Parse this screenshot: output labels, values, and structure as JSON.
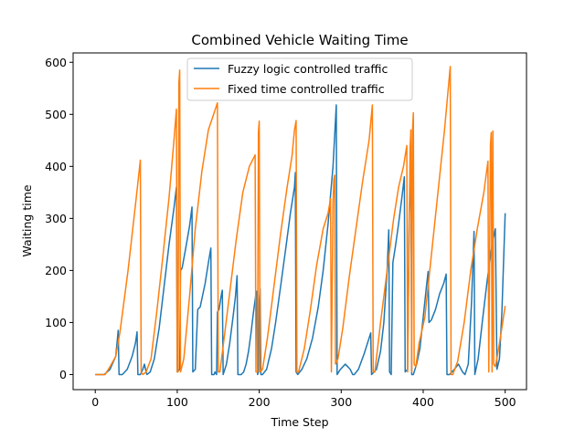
{
  "chart_data": {
    "type": "line",
    "title": "Combined Vehicle Waiting Time",
    "xlabel": "Time Step",
    "ylabel": "Waiting time",
    "xlim": [
      -27,
      526
    ],
    "ylim": [
      -29,
      618
    ],
    "xticks": [
      0,
      100,
      200,
      300,
      400,
      500
    ],
    "yticks": [
      0,
      100,
      200,
      300,
      400,
      500,
      600
    ],
    "grid": false,
    "legend_position": "top-center",
    "series": [
      {
        "name": "Fuzzy logic controlled traffic",
        "color": "#1f77b4",
        "points": [
          [
            0,
            0
          ],
          [
            11,
            0
          ],
          [
            18,
            10
          ],
          [
            25,
            35
          ],
          [
            28,
            85
          ],
          [
            29,
            0
          ],
          [
            33,
            0
          ],
          [
            39,
            10
          ],
          [
            45,
            35
          ],
          [
            49,
            60
          ],
          [
            51,
            82
          ],
          [
            52,
            0
          ],
          [
            55,
            0
          ],
          [
            58,
            10
          ],
          [
            60,
            20
          ],
          [
            62,
            5
          ],
          [
            63,
            0
          ],
          [
            67,
            5
          ],
          [
            72,
            30
          ],
          [
            78,
            90
          ],
          [
            84,
            170
          ],
          [
            90,
            250
          ],
          [
            96,
            320
          ],
          [
            99,
            360
          ],
          [
            100,
            5
          ],
          [
            103,
            10
          ],
          [
            104,
            200
          ],
          [
            106,
            205
          ],
          [
            110,
            240
          ],
          [
            115,
            285
          ],
          [
            118,
            322
          ],
          [
            119,
            5
          ],
          [
            122,
            10
          ],
          [
            125,
            125
          ],
          [
            128,
            130
          ],
          [
            134,
            175
          ],
          [
            138,
            215
          ],
          [
            141,
            243
          ],
          [
            142,
            0
          ],
          [
            144,
            0
          ],
          [
            145,
            0
          ],
          [
            146,
            5
          ],
          [
            148,
            0
          ],
          [
            149,
            120
          ],
          [
            151,
            125
          ],
          [
            154,
            155
          ],
          [
            155,
            162
          ],
          [
            156,
            0
          ],
          [
            160,
            20
          ],
          [
            164,
            60
          ],
          [
            168,
            110
          ],
          [
            171,
            150
          ],
          [
            173,
            190
          ],
          [
            174,
            0
          ],
          [
            178,
            0
          ],
          [
            181,
            5
          ],
          [
            184,
            20
          ],
          [
            187,
            45
          ],
          [
            190,
            80
          ],
          [
            193,
            120
          ],
          [
            196,
            155
          ],
          [
            197,
            160
          ],
          [
            198,
            0
          ],
          [
            199,
            5
          ],
          [
            200,
            140
          ],
          [
            201,
            165
          ],
          [
            202,
            0
          ],
          [
            204,
            0
          ],
          [
            209,
            10
          ],
          [
            215,
            50
          ],
          [
            220,
            100
          ],
          [
            227,
            180
          ],
          [
            233,
            250
          ],
          [
            238,
            310
          ],
          [
            243,
            360
          ],
          [
            244,
            388
          ],
          [
            245,
            5
          ],
          [
            247,
            0
          ],
          [
            252,
            10
          ],
          [
            258,
            30
          ],
          [
            265,
            70
          ],
          [
            272,
            130
          ],
          [
            278,
            200
          ],
          [
            284,
            290
          ],
          [
            290,
            400
          ],
          [
            294,
            518
          ],
          [
            295,
            0
          ],
          [
            299,
            10
          ],
          [
            305,
            20
          ],
          [
            311,
            10
          ],
          [
            314,
            0
          ],
          [
            316,
            0
          ],
          [
            321,
            10
          ],
          [
            328,
            40
          ],
          [
            334,
            70
          ],
          [
            336,
            80
          ],
          [
            337,
            0
          ],
          [
            343,
            10
          ],
          [
            348,
            45
          ],
          [
            352,
            100
          ],
          [
            356,
            200
          ],
          [
            358,
            278
          ],
          [
            359,
            5
          ],
          [
            361,
            0
          ],
          [
            363,
            215
          ],
          [
            366,
            245
          ],
          [
            370,
            290
          ],
          [
            374,
            340
          ],
          [
            377,
            380
          ],
          [
            378,
            5
          ],
          [
            381,
            10
          ],
          [
            383,
            310
          ],
          [
            385,
            385
          ],
          [
            386,
            0
          ],
          [
            388,
            0
          ],
          [
            392,
            20
          ],
          [
            396,
            50
          ],
          [
            400,
            110
          ],
          [
            404,
            170
          ],
          [
            406,
            198
          ],
          [
            407,
            100
          ],
          [
            410,
            105
          ],
          [
            415,
            125
          ],
          [
            420,
            155
          ],
          [
            425,
            175
          ],
          [
            428,
            193
          ],
          [
            429,
            0
          ],
          [
            432,
            0
          ],
          [
            438,
            10
          ],
          [
            443,
            20
          ],
          [
            448,
            5
          ],
          [
            451,
            0
          ],
          [
            455,
            20
          ],
          [
            459,
            140
          ],
          [
            462,
            275
          ],
          [
            463,
            0
          ],
          [
            467,
            30
          ],
          [
            472,
            100
          ],
          [
            478,
            180
          ],
          [
            484,
            250
          ],
          [
            488,
            280
          ],
          [
            490,
            10
          ],
          [
            493,
            30
          ],
          [
            496,
            120
          ],
          [
            500,
            310
          ]
        ]
      },
      {
        "name": "Fixed time controlled traffic",
        "color": "#ff7f0e",
        "points": [
          [
            0,
            0
          ],
          [
            12,
            0
          ],
          [
            18,
            15
          ],
          [
            25,
            35
          ],
          [
            30,
            80
          ],
          [
            35,
            140
          ],
          [
            40,
            200
          ],
          [
            45,
            270
          ],
          [
            50,
            340
          ],
          [
            55,
            412
          ],
          [
            56,
            5
          ],
          [
            58,
            0
          ],
          [
            62,
            5
          ],
          [
            68,
            30
          ],
          [
            75,
            120
          ],
          [
            82,
            220
          ],
          [
            90,
            340
          ],
          [
            96,
            450
          ],
          [
            99,
            510
          ],
          [
            100,
            5
          ],
          [
            101,
            5
          ],
          [
            102,
            560
          ],
          [
            103,
            585
          ],
          [
            104,
            5
          ],
          [
            108,
            30
          ],
          [
            115,
            150
          ],
          [
            122,
            280
          ],
          [
            130,
            390
          ],
          [
            138,
            470
          ],
          [
            149,
            522
          ],
          [
            150,
            5
          ],
          [
            152,
            5
          ],
          [
            158,
            80
          ],
          [
            165,
            170
          ],
          [
            172,
            260
          ],
          [
            180,
            350
          ],
          [
            188,
            400
          ],
          [
            195,
            422
          ],
          [
            196,
            5
          ],
          [
            198,
            5
          ],
          [
            199,
            465
          ],
          [
            200,
            487
          ],
          [
            201,
            5
          ],
          [
            204,
            10
          ],
          [
            210,
            70
          ],
          [
            218,
            170
          ],
          [
            226,
            270
          ],
          [
            234,
            360
          ],
          [
            240,
            420
          ],
          [
            243,
            470
          ],
          [
            245,
            488
          ],
          [
            246,
            5
          ],
          [
            248,
            5
          ],
          [
            255,
            50
          ],
          [
            262,
            120
          ],
          [
            270,
            210
          ],
          [
            278,
            280
          ],
          [
            284,
            310
          ],
          [
            287,
            338
          ],
          [
            288,
            5
          ],
          [
            290,
            330
          ],
          [
            291,
            375
          ],
          [
            292,
            383
          ],
          [
            293,
            20
          ],
          [
            296,
            30
          ],
          [
            302,
            90
          ],
          [
            310,
            190
          ],
          [
            318,
            280
          ],
          [
            326,
            370
          ],
          [
            334,
            450
          ],
          [
            338,
            518
          ],
          [
            339,
            5
          ],
          [
            341,
            5
          ],
          [
            348,
            100
          ],
          [
            356,
            200
          ],
          [
            364,
            300
          ],
          [
            370,
            360
          ],
          [
            376,
            400
          ],
          [
            380,
            440
          ],
          [
            381,
            5
          ],
          [
            384,
            435
          ],
          [
            385,
            470
          ],
          [
            386,
            5
          ],
          [
            387,
            470
          ],
          [
            388,
            503
          ],
          [
            389,
            20
          ],
          [
            391,
            15
          ],
          [
            395,
            60
          ],
          [
            402,
            110
          ],
          [
            410,
            230
          ],
          [
            418,
            350
          ],
          [
            426,
            470
          ],
          [
            433,
            592
          ],
          [
            434,
            0
          ],
          [
            436,
            0
          ],
          [
            442,
            25
          ],
          [
            450,
            100
          ],
          [
            458,
            200
          ],
          [
            466,
            280
          ],
          [
            474,
            350
          ],
          [
            479,
            410
          ],
          [
            480,
            5
          ],
          [
            482,
            440
          ],
          [
            483,
            465
          ],
          [
            484,
            5
          ],
          [
            485,
            468
          ],
          [
            486,
            20
          ],
          [
            488,
            15
          ],
          [
            492,
            50
          ],
          [
            496,
            90
          ],
          [
            500,
            132
          ]
        ]
      }
    ]
  }
}
